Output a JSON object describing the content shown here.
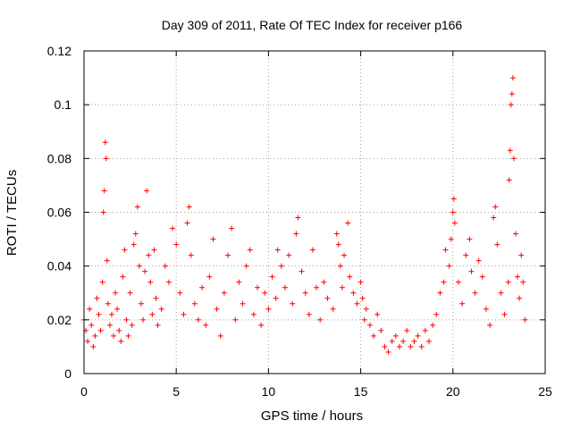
{
  "chart_data": {
    "type": "scatter",
    "title": "Day 309 of 2011, Rate Of TEC Index for receiver p166",
    "xlabel": "GPS time / hours",
    "ylabel": "ROTI / TECUs",
    "xlim": [
      0,
      25
    ],
    "ylim": [
      0,
      0.12
    ],
    "xticks": [
      "0",
      "5",
      "10",
      "15",
      "20",
      "25"
    ],
    "yticks": [
      "0",
      "0.02",
      "0.04",
      "0.06",
      "0.08",
      "0.1",
      "0.12"
    ],
    "grid": true,
    "marker": "plus",
    "marker_color": "#ff0000",
    "series": [
      {
        "points": [
          [
            0.0,
            0.02
          ],
          [
            0.1,
            0.016
          ],
          [
            0.2,
            0.012
          ],
          [
            0.3,
            0.024
          ],
          [
            0.4,
            0.018
          ],
          [
            0.5,
            0.01
          ],
          [
            0.6,
            0.014
          ],
          [
            0.7,
            0.028
          ],
          [
            0.8,
            0.022
          ],
          [
            0.9,
            0.016
          ],
          [
            1.0,
            0.034
          ],
          [
            1.05,
            0.06
          ],
          [
            1.1,
            0.068
          ],
          [
            1.15,
            0.086
          ],
          [
            1.2,
            0.08
          ],
          [
            1.25,
            0.042
          ],
          [
            1.3,
            0.026
          ],
          [
            1.4,
            0.018
          ],
          [
            1.5,
            0.022
          ],
          [
            1.6,
            0.014
          ],
          [
            1.7,
            0.03
          ],
          [
            1.8,
            0.024
          ],
          [
            1.9,
            0.016
          ],
          [
            2.0,
            0.012
          ],
          [
            2.1,
            0.036
          ],
          [
            2.2,
            0.046
          ],
          [
            2.3,
            0.02
          ],
          [
            2.4,
            0.014
          ],
          [
            2.5,
            0.03
          ],
          [
            2.6,
            0.018
          ],
          [
            2.7,
            0.048
          ],
          [
            2.8,
            0.052
          ],
          [
            2.9,
            0.062
          ],
          [
            3.0,
            0.04
          ],
          [
            3.1,
            0.026
          ],
          [
            3.2,
            0.02
          ],
          [
            3.3,
            0.038
          ],
          [
            3.4,
            0.068
          ],
          [
            3.5,
            0.044
          ],
          [
            3.6,
            0.034
          ],
          [
            3.7,
            0.022
          ],
          [
            3.8,
            0.046
          ],
          [
            3.9,
            0.028
          ],
          [
            4.0,
            0.018
          ],
          [
            4.2,
            0.024
          ],
          [
            4.4,
            0.04
          ],
          [
            4.6,
            0.034
          ],
          [
            4.8,
            0.054
          ],
          [
            5.0,
            0.048
          ],
          [
            5.2,
            0.03
          ],
          [
            5.4,
            0.022
          ],
          [
            5.6,
            0.056
          ],
          [
            5.7,
            0.062
          ],
          [
            5.8,
            0.044
          ],
          [
            6.0,
            0.026
          ],
          [
            6.2,
            0.02
          ],
          [
            6.4,
            0.032
          ],
          [
            6.6,
            0.018
          ],
          [
            6.8,
            0.036
          ],
          [
            7.0,
            0.05
          ],
          [
            7.2,
            0.024
          ],
          [
            7.4,
            0.014
          ],
          [
            7.6,
            0.03
          ],
          [
            7.8,
            0.044
          ],
          [
            8.0,
            0.054
          ],
          [
            8.2,
            0.02
          ],
          [
            8.4,
            0.034
          ],
          [
            8.6,
            0.026
          ],
          [
            8.8,
            0.04
          ],
          [
            9.0,
            0.046
          ],
          [
            9.2,
            0.022
          ],
          [
            9.4,
            0.032
          ],
          [
            9.6,
            0.018
          ],
          [
            9.8,
            0.03
          ],
          [
            10.0,
            0.024
          ],
          [
            10.2,
            0.036
          ],
          [
            10.4,
            0.028
          ],
          [
            10.5,
            0.046
          ],
          [
            10.7,
            0.04
          ],
          [
            10.9,
            0.032
          ],
          [
            11.1,
            0.044
          ],
          [
            11.3,
            0.026
          ],
          [
            11.5,
            0.052
          ],
          [
            11.6,
            0.058
          ],
          [
            11.8,
            0.038
          ],
          [
            12.0,
            0.03
          ],
          [
            12.2,
            0.022
          ],
          [
            12.4,
            0.046
          ],
          [
            12.6,
            0.032
          ],
          [
            12.8,
            0.02
          ],
          [
            13.0,
            0.034
          ],
          [
            13.2,
            0.028
          ],
          [
            13.5,
            0.024
          ],
          [
            13.7,
            0.052
          ],
          [
            13.8,
            0.048
          ],
          [
            13.9,
            0.04
          ],
          [
            14.0,
            0.032
          ],
          [
            14.1,
            0.044
          ],
          [
            14.3,
            0.056
          ],
          [
            14.4,
            0.036
          ],
          [
            14.6,
            0.03
          ],
          [
            14.8,
            0.026
          ],
          [
            15.0,
            0.034
          ],
          [
            15.1,
            0.028
          ],
          [
            15.2,
            0.02
          ],
          [
            15.3,
            0.024
          ],
          [
            15.5,
            0.018
          ],
          [
            15.7,
            0.014
          ],
          [
            15.9,
            0.022
          ],
          [
            16.1,
            0.016
          ],
          [
            16.3,
            0.01
          ],
          [
            16.5,
            0.008
          ],
          [
            16.7,
            0.012
          ],
          [
            16.9,
            0.014
          ],
          [
            17.1,
            0.01
          ],
          [
            17.3,
            0.012
          ],
          [
            17.5,
            0.016
          ],
          [
            17.7,
            0.01
          ],
          [
            17.9,
            0.012
          ],
          [
            18.1,
            0.014
          ],
          [
            18.3,
            0.01
          ],
          [
            18.5,
            0.016
          ],
          [
            18.7,
            0.012
          ],
          [
            18.9,
            0.018
          ],
          [
            19.1,
            0.022
          ],
          [
            19.3,
            0.03
          ],
          [
            19.5,
            0.034
          ],
          [
            19.6,
            0.046
          ],
          [
            19.8,
            0.04
          ],
          [
            19.9,
            0.05
          ],
          [
            20.0,
            0.06
          ],
          [
            20.05,
            0.065
          ],
          [
            20.1,
            0.056
          ],
          [
            20.3,
            0.034
          ],
          [
            20.5,
            0.026
          ],
          [
            20.7,
            0.044
          ],
          [
            20.9,
            0.05
          ],
          [
            21.0,
            0.038
          ],
          [
            21.2,
            0.03
          ],
          [
            21.4,
            0.042
          ],
          [
            21.6,
            0.036
          ],
          [
            21.8,
            0.024
          ],
          [
            22.0,
            0.018
          ],
          [
            22.2,
            0.058
          ],
          [
            22.3,
            0.062
          ],
          [
            22.4,
            0.048
          ],
          [
            22.6,
            0.03
          ],
          [
            22.8,
            0.022
          ],
          [
            23.0,
            0.034
          ],
          [
            23.05,
            0.072
          ],
          [
            23.1,
            0.083
          ],
          [
            23.15,
            0.1
          ],
          [
            23.2,
            0.104
          ],
          [
            23.25,
            0.11
          ],
          [
            23.3,
            0.08
          ],
          [
            23.4,
            0.052
          ],
          [
            23.5,
            0.036
          ],
          [
            23.6,
            0.028
          ],
          [
            23.7,
            0.044
          ],
          [
            23.8,
            0.034
          ],
          [
            23.9,
            0.02
          ]
        ]
      }
    ]
  }
}
